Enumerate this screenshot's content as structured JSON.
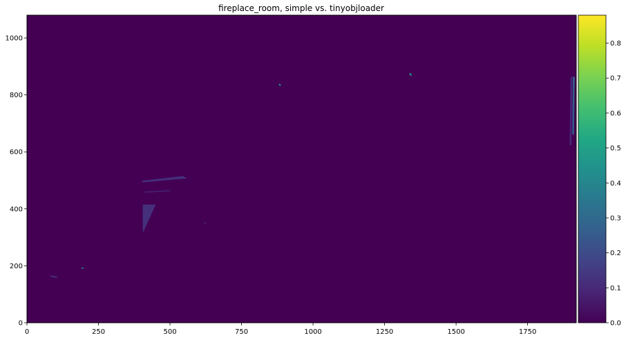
{
  "chart_data": {
    "type": "heatmap",
    "title": "fireplace_room, simple vs. tinyobjloader",
    "xlabel": "",
    "ylabel": "",
    "xlim": [
      0,
      1920
    ],
    "ylim": [
      0,
      1080
    ],
    "x_ticks": [
      0,
      250,
      500,
      750,
      1000,
      1250,
      1500,
      1750
    ],
    "y_ticks": [
      0,
      200,
      400,
      600,
      800,
      1000
    ],
    "colorbar": {
      "vmin": 0.0,
      "vmax": 0.88,
      "ticks": [
        "0.0",
        "0.1",
        "0.2",
        "0.3",
        "0.4",
        "0.5",
        "0.6",
        "0.7",
        "0.8"
      ],
      "colormap": "viridis"
    },
    "background_value": 0.0,
    "regions": [
      {
        "label": "upper-bright-speck",
        "value": 0.45,
        "points": [
          [
            1338,
            877
          ],
          [
            1346,
            871
          ],
          [
            1343,
            867
          ],
          [
            1336,
            873
          ]
        ]
      },
      {
        "label": "mid-bright-speck",
        "value": 0.45,
        "points": [
          [
            882,
            840
          ],
          [
            888,
            835
          ],
          [
            885,
            831
          ],
          [
            880,
            836
          ]
        ]
      },
      {
        "label": "right-edge-sliver",
        "value": 0.25,
        "points": [
          [
            1908,
            865
          ],
          [
            1915,
            862
          ],
          [
            1912,
            660
          ],
          [
            1906,
            662
          ]
        ]
      },
      {
        "label": "right-edge-dim",
        "value": 0.1,
        "points": [
          [
            1900,
            860
          ],
          [
            1906,
            865
          ],
          [
            1903,
            625
          ],
          [
            1897,
            622
          ]
        ]
      },
      {
        "label": "wedge-upper",
        "value": 0.12,
        "points": [
          [
            400,
            498
          ],
          [
            545,
            515
          ],
          [
            560,
            507
          ],
          [
            405,
            493
          ]
        ]
      },
      {
        "label": "wedge-dashes",
        "value": 0.1,
        "points": [
          [
            410,
            460
          ],
          [
            500,
            465
          ],
          [
            500,
            462
          ],
          [
            410,
            457
          ]
        ]
      },
      {
        "label": "triangle",
        "value": 0.12,
        "points": [
          [
            405,
            415
          ],
          [
            450,
            415
          ],
          [
            405,
            315
          ]
        ]
      },
      {
        "label": "small-dot",
        "value": 0.1,
        "points": [
          [
            620,
            352
          ],
          [
            624,
            352
          ],
          [
            624,
            346
          ],
          [
            620,
            346
          ]
        ]
      },
      {
        "label": "low-sliver",
        "value": 0.12,
        "points": [
          [
            85,
            166
          ],
          [
            110,
            161
          ],
          [
            100,
            158
          ],
          [
            80,
            163
          ]
        ]
      },
      {
        "label": "low-bright-dot",
        "value": 0.35,
        "points": [
          [
            192,
            194
          ],
          [
            198,
            194
          ],
          [
            197,
            189
          ],
          [
            191,
            189
          ]
        ]
      }
    ]
  }
}
